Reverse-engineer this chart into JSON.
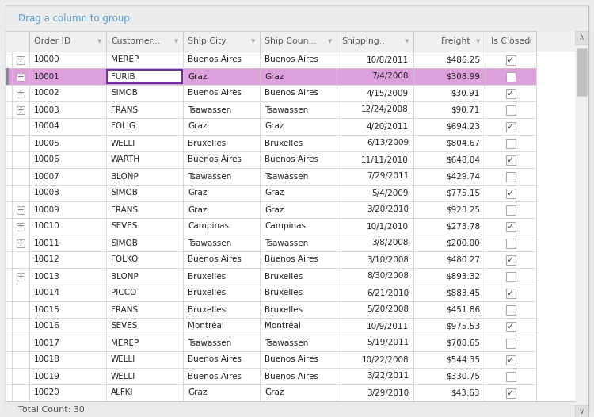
{
  "header_text": "Drag a column to group",
  "rows": [
    {
      "order_id": "10000",
      "customer": "MEREP",
      "ship_city": "Buenos Aires",
      "ship_country": "Buenos Aires",
      "shipping": "10/8/2011",
      "freight": "$486.25",
      "is_closed": true,
      "selected": false,
      "has_expand": true
    },
    {
      "order_id": "10001",
      "customer": "FURIB",
      "ship_city": "Graz",
      "ship_country": "Graz",
      "shipping": "7/4/2008",
      "freight": "$308.99",
      "is_closed": false,
      "selected": true,
      "has_expand": true
    },
    {
      "order_id": "10002",
      "customer": "SIMOB",
      "ship_city": "Buenos Aires",
      "ship_country": "Buenos Aires",
      "shipping": "4/15/2009",
      "freight": "$30.91",
      "is_closed": true,
      "selected": false,
      "has_expand": true
    },
    {
      "order_id": "10003",
      "customer": "FRANS",
      "ship_city": "Tsawassen",
      "ship_country": "Tsawassen",
      "shipping": "12/24/2008",
      "freight": "$90.71",
      "is_closed": false,
      "selected": false,
      "has_expand": true
    },
    {
      "order_id": "10004",
      "customer": "FOLIG",
      "ship_city": "Graz",
      "ship_country": "Graz",
      "shipping": "4/20/2011",
      "freight": "$694.23",
      "is_closed": true,
      "selected": false,
      "has_expand": false
    },
    {
      "order_id": "10005",
      "customer": "WELLI",
      "ship_city": "Bruxelles",
      "ship_country": "Bruxelles",
      "shipping": "6/13/2009",
      "freight": "$804.67",
      "is_closed": false,
      "selected": false,
      "has_expand": false
    },
    {
      "order_id": "10006",
      "customer": "WARTH",
      "ship_city": "Buenos Aires",
      "ship_country": "Buenos Aires",
      "shipping": "11/11/2010",
      "freight": "$648.04",
      "is_closed": true,
      "selected": false,
      "has_expand": false
    },
    {
      "order_id": "10007",
      "customer": "BLONP",
      "ship_city": "Tsawassen",
      "ship_country": "Tsawassen",
      "shipping": "7/29/2011",
      "freight": "$429.74",
      "is_closed": false,
      "selected": false,
      "has_expand": false
    },
    {
      "order_id": "10008",
      "customer": "SIMOB",
      "ship_city": "Graz",
      "ship_country": "Graz",
      "shipping": "5/4/2009",
      "freight": "$775.15",
      "is_closed": true,
      "selected": false,
      "has_expand": false
    },
    {
      "order_id": "10009",
      "customer": "FRANS",
      "ship_city": "Graz",
      "ship_country": "Graz",
      "shipping": "3/20/2010",
      "freight": "$923.25",
      "is_closed": false,
      "selected": false,
      "has_expand": true
    },
    {
      "order_id": "10010",
      "customer": "SEVES",
      "ship_city": "Campinas",
      "ship_country": "Campinas",
      "shipping": "10/1/2010",
      "freight": "$273.78",
      "is_closed": true,
      "selected": false,
      "has_expand": true
    },
    {
      "order_id": "10011",
      "customer": "SIMOB",
      "ship_city": "Tsawassen",
      "ship_country": "Tsawassen",
      "shipping": "3/8/2008",
      "freight": "$200.00",
      "is_closed": false,
      "selected": false,
      "has_expand": true
    },
    {
      "order_id": "10012",
      "customer": "FOLKO",
      "ship_city": "Buenos Aires",
      "ship_country": "Buenos Aires",
      "shipping": "3/10/2008",
      "freight": "$480.27",
      "is_closed": true,
      "selected": false,
      "has_expand": false
    },
    {
      "order_id": "10013",
      "customer": "BLONP",
      "ship_city": "Bruxelles",
      "ship_country": "Bruxelles",
      "shipping": "8/30/2008",
      "freight": "$893.32",
      "is_closed": false,
      "selected": false,
      "has_expand": true
    },
    {
      "order_id": "10014",
      "customer": "PICCO",
      "ship_city": "Bruxelles",
      "ship_country": "Bruxelles",
      "shipping": "6/21/2010",
      "freight": "$883.45",
      "is_closed": true,
      "selected": false,
      "has_expand": false
    },
    {
      "order_id": "10015",
      "customer": "FRANS",
      "ship_city": "Bruxelles",
      "ship_country": "Bruxelles",
      "shipping": "5/20/2008",
      "freight": "$451.86",
      "is_closed": false,
      "selected": false,
      "has_expand": false
    },
    {
      "order_id": "10016",
      "customer": "SEVES",
      "ship_city": "Montréal",
      "ship_country": "Montréal",
      "shipping": "10/9/2011",
      "freight": "$975.53",
      "is_closed": true,
      "selected": false,
      "has_expand": false
    },
    {
      "order_id": "10017",
      "customer": "MEREP",
      "ship_city": "Tsawassen",
      "ship_country": "Tsawassen",
      "shipping": "5/19/2011",
      "freight": "$708.65",
      "is_closed": false,
      "selected": false,
      "has_expand": false
    },
    {
      "order_id": "10018",
      "customer": "WELLI",
      "ship_city": "Buenos Aires",
      "ship_country": "Buenos Aires",
      "shipping": "10/22/2008",
      "freight": "$544.35",
      "is_closed": true,
      "selected": false,
      "has_expand": false
    },
    {
      "order_id": "10019",
      "customer": "WELLI",
      "ship_city": "Buenos Aires",
      "ship_country": "Buenos Aires",
      "shipping": "3/22/2011",
      "freight": "$330.75",
      "is_closed": false,
      "selected": false,
      "has_expand": false
    },
    {
      "order_id": "10020",
      "customer": "ALFKI",
      "ship_city": "Graz",
      "ship_country": "Graz",
      "shipping": "3/29/2010",
      "freight": "$43.63",
      "is_closed": true,
      "selected": false,
      "has_expand": false
    }
  ],
  "footer_text": "Total Count: 30",
  "bg_color": "#ebebeb",
  "selected_row_bg": "#dda0dd",
  "selected_cell_border": "#7030a0",
  "header_color": "#555555",
  "grid_line_color": "#cccccc",
  "text_color": "#222222",
  "col_header_bg": "#f0f0f0",
  "outer_border_color": "#bbbbbb",
  "scrollbar_bg": "#f0f0f0",
  "scrollbar_thumb": "#c0c0c0",
  "scroll_arrow_bg": "#e0e0e0",
  "font_size": 7.5,
  "header_font_size": 7.8
}
